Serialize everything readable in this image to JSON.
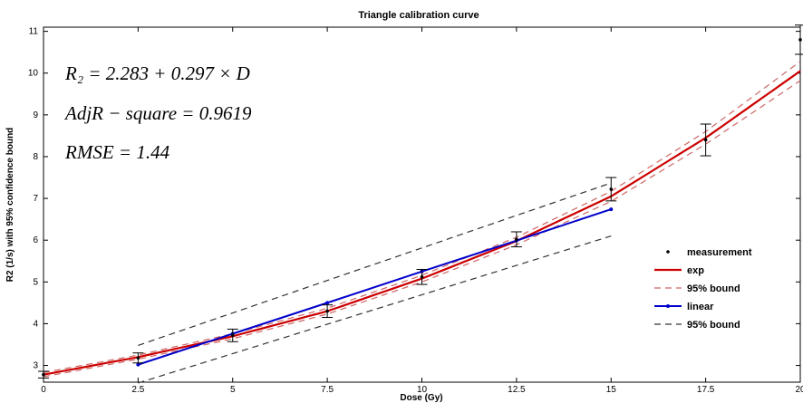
{
  "chart_data": {
    "type": "line",
    "title": "Triangle calibration curve",
    "xlabel": "Dose (Gy)",
    "ylabel": "R2 (1/s) with 95% confidence bound",
    "xlim": [
      0,
      20
    ],
    "ylim": [
      2.6,
      11.1
    ],
    "xticks": [
      0,
      2.5,
      5,
      7.5,
      10,
      12.5,
      15,
      17.5,
      20
    ],
    "xtick_labels": [
      "0",
      "2.5",
      "5",
      "7.5",
      "10",
      "12.5",
      "15",
      "17.5",
      "20"
    ],
    "yticks": [
      3,
      4,
      5,
      6,
      7,
      8,
      9,
      10,
      11
    ],
    "ytick_labels": [
      "3",
      "4",
      "5",
      "6",
      "7",
      "8",
      "9",
      "10",
      "11"
    ],
    "grid": false,
    "legend_position": "right",
    "annotations": [
      "R₂ = 2.283 + 0.297 × D",
      "AdjR − square = 0.9619",
      "RMSE = 1.44"
    ],
    "series": [
      {
        "name": "measurement",
        "style": "points-with-errorbars",
        "color": "#000000",
        "x": [
          0,
          2.5,
          5,
          7.5,
          10,
          12.5,
          15,
          17.5,
          20
        ],
        "y": [
          2.78,
          3.18,
          3.72,
          4.3,
          5.12,
          6.02,
          7.22,
          8.4,
          10.8
        ],
        "err": [
          0.08,
          0.12,
          0.15,
          0.15,
          0.18,
          0.18,
          0.28,
          0.38,
          0.35
        ]
      },
      {
        "name": "exp",
        "style": "solid",
        "color": "#cc0000",
        "x": [
          0,
          2.5,
          5,
          7.5,
          10,
          12.5,
          15,
          17.5,
          20
        ],
        "y": [
          2.78,
          3.2,
          3.7,
          4.3,
          5.08,
          5.98,
          7.05,
          8.45,
          10.05
        ]
      },
      {
        "name": "95% bound",
        "style": "dashed",
        "color": "#cc6666",
        "x": [
          0,
          2.5,
          5,
          7.5,
          10,
          12.5,
          15,
          17.5,
          20
        ],
        "y": [
          2.83,
          3.25,
          3.76,
          4.37,
          5.16,
          6.07,
          7.17,
          8.6,
          10.28
        ]
      },
      {
        "name": "95% bound",
        "style": "dashed",
        "color": "#cc6666",
        "x": [
          0,
          2.5,
          5,
          7.5,
          10,
          12.5,
          15,
          17.5,
          20
        ],
        "y": [
          2.73,
          3.15,
          3.64,
          4.23,
          5.0,
          5.89,
          6.93,
          8.3,
          9.82
        ]
      },
      {
        "name": "linear",
        "style": "solid-markers",
        "color": "#0000cc",
        "x": [
          2.5,
          5,
          7.5,
          10,
          12.5,
          15
        ],
        "y": [
          3.02,
          3.76,
          4.5,
          5.25,
          5.99,
          6.74
        ]
      },
      {
        "name": "95% bound",
        "style": "dashed",
        "color": "#333333",
        "x": [
          2.5,
          15
        ],
        "y": [
          3.48,
          7.37
        ]
      },
      {
        "name": "95% bound",
        "style": "dashed",
        "color": "#333333",
        "x": [
          2.5,
          15
        ],
        "y": [
          2.58,
          6.1
        ]
      }
    ],
    "legend": [
      {
        "label": "measurement",
        "marker": "dot",
        "color": "#000000"
      },
      {
        "label": "exp",
        "marker": "solid",
        "color": "#cc0000"
      },
      {
        "label": "95% bound",
        "marker": "dashed",
        "color": "#cc6666"
      },
      {
        "label": "linear",
        "marker": "solid-dot",
        "color": "#0000cc"
      },
      {
        "label": "95% bound",
        "marker": "dashed",
        "color": "#333333"
      }
    ]
  }
}
